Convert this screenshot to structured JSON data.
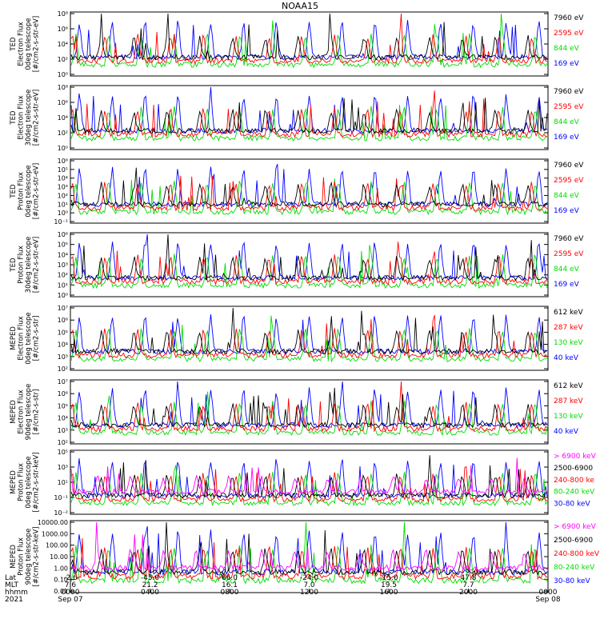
{
  "title": "NOAA15",
  "colors": {
    "black": "#000000",
    "blue": "#0000ff",
    "red": "#ff0000",
    "green": "#00dd00",
    "magenta": "#ff00ff"
  },
  "chart_data": [
    {
      "type": "line",
      "ylabel": [
        "TED",
        "Electron Flux",
        "0deg telescope",
        "[#/cm2-s-str-eV]"
      ],
      "yscale": "log",
      "yticks": [
        "10⁰",
        "10²",
        "10⁴",
        "10⁶",
        "10⁸"
      ],
      "legend": [
        {
          "label": "7960 eV",
          "color": "#000000"
        },
        {
          "label": "2595 eV",
          "color": "#ff0000"
        },
        {
          "label": "844 eV",
          "color": "#00dd00"
        },
        {
          "label": "169 eV",
          "color": "#0000ff"
        }
      ]
    },
    {
      "type": "line",
      "ylabel": [
        "TED",
        "Electron Flux",
        "30deg telescope",
        "[#/cm2-s-str-eV]"
      ],
      "yscale": "log",
      "yticks": [
        "10⁰",
        "10²",
        "10⁴",
        "10⁶",
        "10⁸"
      ],
      "legend": [
        {
          "label": "7960 eV",
          "color": "#000000"
        },
        {
          "label": "2595 eV",
          "color": "#ff0000"
        },
        {
          "label": "844 eV",
          "color": "#00dd00"
        },
        {
          "label": "169 eV",
          "color": "#0000ff"
        }
      ]
    },
    {
      "type": "line",
      "ylabel": [
        "TED",
        "Proton Flux",
        "0deg telescope",
        "[#/cm2-s-str-eV]"
      ],
      "yscale": "log",
      "yticks": [
        "10⁻¹",
        "10⁰",
        "10¹",
        "10²",
        "10³",
        "10⁴",
        "10⁵",
        "10⁶"
      ],
      "legend": [
        {
          "label": "7960 eV",
          "color": "#000000"
        },
        {
          "label": "2595 eV",
          "color": "#ff0000"
        },
        {
          "label": "844 eV",
          "color": "#00dd00"
        },
        {
          "label": "169 eV",
          "color": "#0000ff"
        }
      ]
    },
    {
      "type": "line",
      "ylabel": [
        "TED",
        "Proton Flux",
        "30deg telescope",
        "[#/cm2-s-str-eV]"
      ],
      "yscale": "log",
      "yticks": [
        "10⁰",
        "10¹",
        "10²",
        "10³",
        "10⁴",
        "10⁵",
        "10⁶"
      ],
      "legend": [
        {
          "label": "7960 eV",
          "color": "#000000"
        },
        {
          "label": "2595 eV",
          "color": "#ff0000"
        },
        {
          "label": "844 eV",
          "color": "#00dd00"
        },
        {
          "label": "169 eV",
          "color": "#0000ff"
        }
      ]
    },
    {
      "type": "line",
      "ylabel": [
        "MEPED",
        "Electron Flux",
        "0deg telescope",
        "[#/cm2-s-str]"
      ],
      "yscale": "log",
      "yticks": [
        "10²",
        "10³",
        "10⁴",
        "10⁵",
        "10⁶",
        "10⁷"
      ],
      "legend": [
        {
          "label": "612 keV",
          "color": "#000000"
        },
        {
          "label": "287 keV",
          "color": "#ff0000"
        },
        {
          "label": "130 keV",
          "color": "#00dd00"
        },
        {
          "label": "40 keV",
          "color": "#0000ff"
        }
      ]
    },
    {
      "type": "line",
      "ylabel": [
        "MEPED",
        "Electron Flux",
        "90deg telescope",
        "[#/cm2-s-str]"
      ],
      "yscale": "log",
      "yticks": [
        "10²",
        "10³",
        "10⁴",
        "10⁵",
        "10⁶",
        "10⁷"
      ],
      "legend": [
        {
          "label": "612 keV",
          "color": "#000000"
        },
        {
          "label": "287 keV",
          "color": "#ff0000"
        },
        {
          "label": "130 keV",
          "color": "#00dd00"
        },
        {
          "label": "40 keV",
          "color": "#0000ff"
        }
      ]
    },
    {
      "type": "line",
      "ylabel": [
        "MEPED",
        "Proton Flux",
        "0deg telescope",
        "[#/cm2-s-str-keV]"
      ],
      "yscale": "log",
      "yticks": [
        "10⁻²",
        "10⁻¹",
        "10¹",
        "10³",
        "10⁵"
      ],
      "legend": [
        {
          "label": "> 6900 keV",
          "color": "#ff00ff"
        },
        {
          "label": "2500-6900",
          "color": "#000000"
        },
        {
          "label": "240-800 ke",
          "color": "#ff0000"
        },
        {
          "label": "80-240 keV",
          "color": "#00dd00"
        },
        {
          "label": "30-80 keV",
          "color": "#0000ff"
        }
      ]
    },
    {
      "type": "line",
      "ylabel": [
        "MEPED",
        "Proton Flux",
        "90deg telescope",
        "[#/cm2-s-str-keV]"
      ],
      "yscale": "log",
      "yticks": [
        "0.01",
        "0.10",
        "1.00",
        "10.00",
        "100.00",
        "1000.00",
        "10000.00"
      ],
      "legend": [
        {
          "label": "> 6900 keV",
          "color": "#ff00ff"
        },
        {
          "label": "2500-6900",
          "color": "#000000"
        },
        {
          "label": "240-800 keV",
          "color": "#ff0000"
        },
        {
          "label": "80-240 keV",
          "color": "#00dd00"
        },
        {
          "label": "30-80 keV",
          "color": "#0000ff"
        }
      ]
    }
  ],
  "xaxis": {
    "row_labels": [
      "Lat",
      "MLT",
      "hhmm",
      "2021"
    ],
    "ticks": [
      {
        "lat": "-2.6",
        "mlt": "7.6",
        "hhmm": "0000",
        "date": "Sep 07"
      },
      {
        "lat": "-45.0",
        "mlt": "21.2",
        "hhmm": "0400",
        "date": ""
      },
      {
        "lat": "66.0",
        "mlt": "16.1",
        "hhmm": "0800",
        "date": ""
      },
      {
        "lat": "-24.0",
        "mlt": "7.0",
        "hhmm": "1200",
        "date": ""
      },
      {
        "lat": "-15.0",
        "mlt": "19.5",
        "hhmm": "1600",
        "date": ""
      },
      {
        "lat": "47.8",
        "mlt": "7.7",
        "hhmm": "2000",
        "date": ""
      },
      {
        "lat": "",
        "mlt": "",
        "hhmm": "0000",
        "date": "Sep 08"
      }
    ]
  }
}
